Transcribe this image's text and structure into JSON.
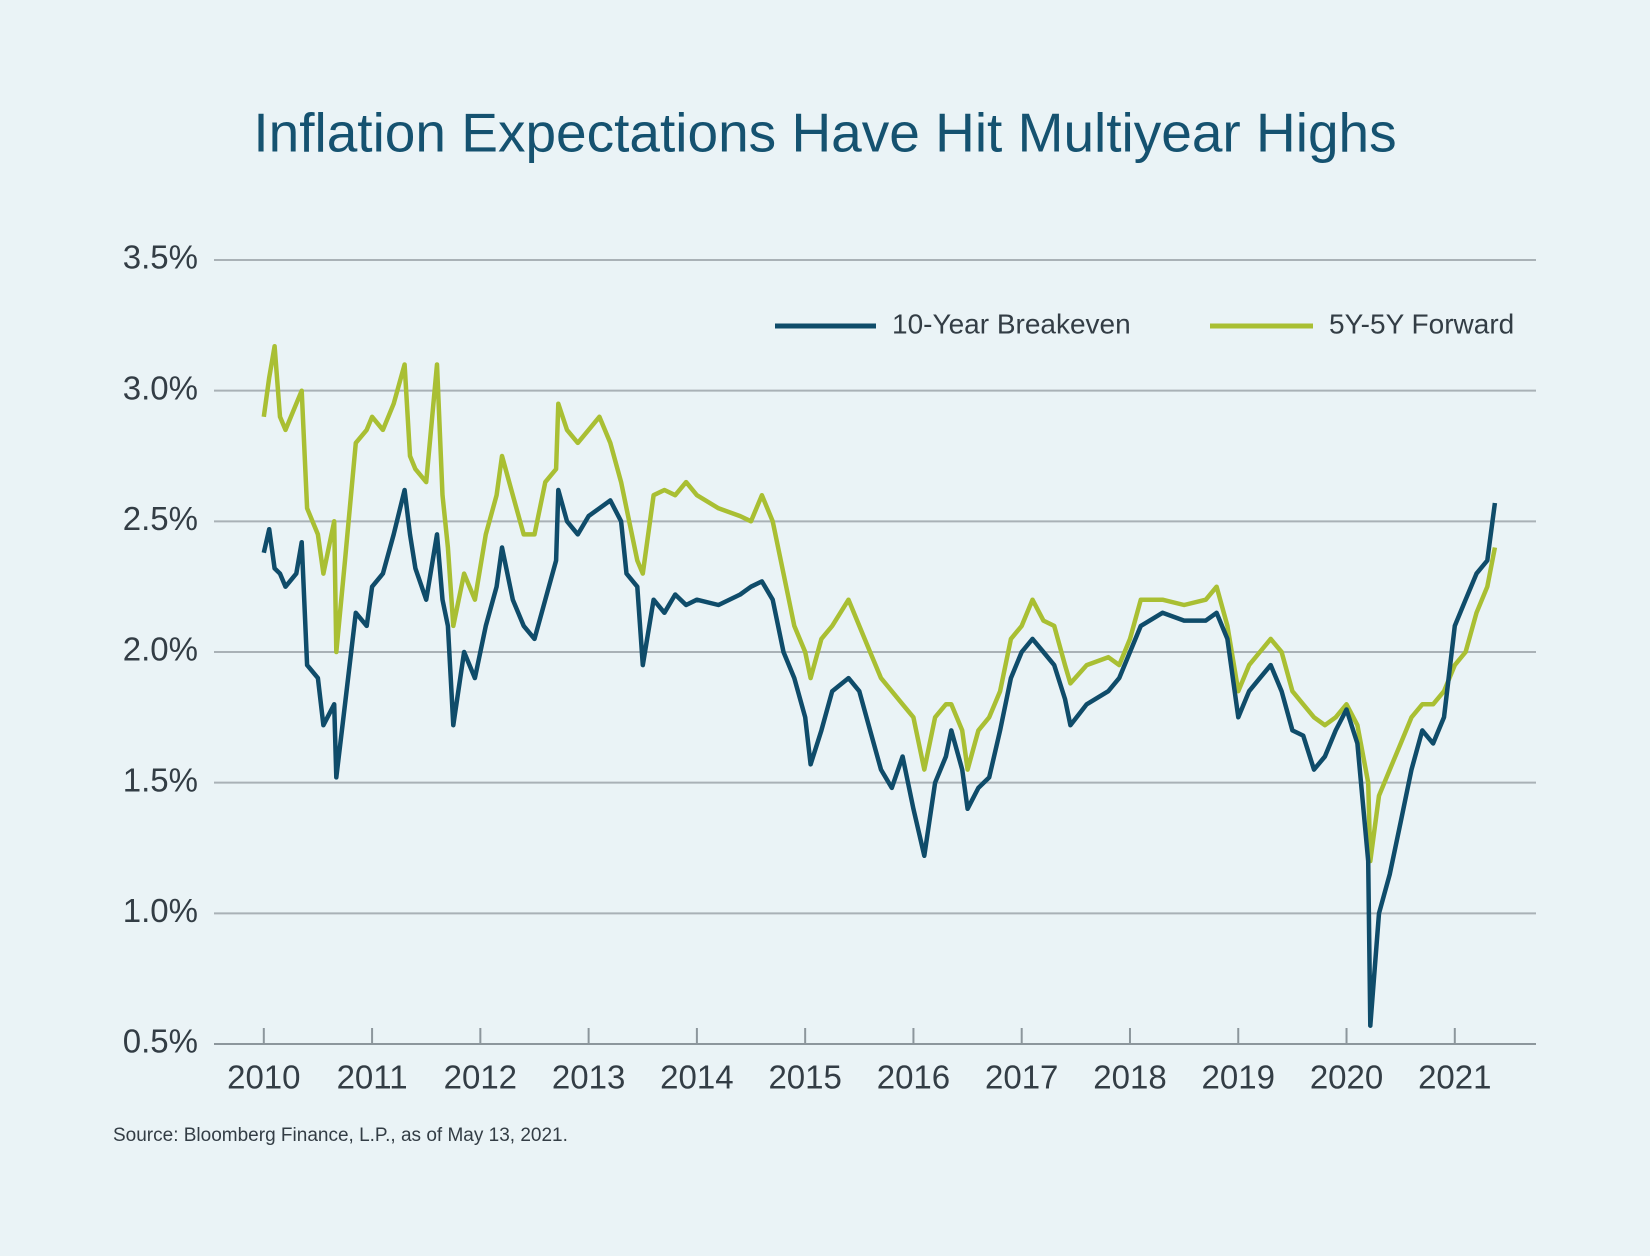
{
  "chart_data": {
    "type": "line",
    "title": "Inflation Expectations Have Hit Multiyear Highs",
    "source": "Source: Bloomberg Finance, L.P., as of May 13, 2021.",
    "x": [
      2010.0,
      2010.05,
      2010.1,
      2010.15,
      2010.2,
      2010.3,
      2010.35,
      2010.4,
      2010.5,
      2010.55,
      2010.65,
      2010.67,
      2010.75,
      2010.85,
      2010.95,
      2011.0,
      2011.1,
      2011.2,
      2011.3,
      2011.35,
      2011.4,
      2011.5,
      2011.6,
      2011.65,
      2011.7,
      2011.75,
      2011.85,
      2011.95,
      2012.05,
      2012.15,
      2012.2,
      2012.3,
      2012.4,
      2012.5,
      2012.6,
      2012.7,
      2012.72,
      2012.8,
      2012.9,
      2013.0,
      2013.1,
      2013.2,
      2013.3,
      2013.35,
      2013.45,
      2013.5,
      2013.6,
      2013.7,
      2013.8,
      2013.9,
      2014.0,
      2014.2,
      2014.4,
      2014.5,
      2014.6,
      2014.7,
      2014.8,
      2014.9,
      2015.0,
      2015.05,
      2015.15,
      2015.25,
      2015.4,
      2015.5,
      2015.6,
      2015.7,
      2015.8,
      2015.9,
      2016.0,
      2016.1,
      2016.2,
      2016.3,
      2016.35,
      2016.45,
      2016.5,
      2016.6,
      2016.7,
      2016.8,
      2016.9,
      2017.0,
      2017.1,
      2017.2,
      2017.3,
      2017.4,
      2017.45,
      2017.6,
      2017.8,
      2017.9,
      2018.0,
      2018.1,
      2018.3,
      2018.5,
      2018.7,
      2018.8,
      2018.9,
      2019.0,
      2019.1,
      2019.2,
      2019.3,
      2019.4,
      2019.5,
      2019.6,
      2019.7,
      2019.8,
      2019.9,
      2020.0,
      2020.1,
      2020.2,
      2020.22,
      2020.3,
      2020.4,
      2020.5,
      2020.6,
      2020.7,
      2020.8,
      2020.9,
      2021.0,
      2021.1,
      2021.2,
      2021.3,
      2021.37
    ],
    "series": [
      {
        "name": "10-Year Breakeven",
        "color": "#0f4c6a",
        "values": [
          2.38,
          2.47,
          2.32,
          2.3,
          2.25,
          2.3,
          2.42,
          1.95,
          1.9,
          1.72,
          1.8,
          1.52,
          1.8,
          2.15,
          2.1,
          2.25,
          2.3,
          2.45,
          2.62,
          2.45,
          2.32,
          2.2,
          2.45,
          2.2,
          2.1,
          1.72,
          2.0,
          1.9,
          2.1,
          2.25,
          2.4,
          2.2,
          2.1,
          2.05,
          2.2,
          2.35,
          2.62,
          2.5,
          2.45,
          2.52,
          2.55,
          2.58,
          2.5,
          2.3,
          2.25,
          1.95,
          2.2,
          2.15,
          2.22,
          2.18,
          2.2,
          2.18,
          2.22,
          2.25,
          2.27,
          2.2,
          2.0,
          1.9,
          1.75,
          1.57,
          1.7,
          1.85,
          1.9,
          1.85,
          1.7,
          1.55,
          1.48,
          1.6,
          1.4,
          1.22,
          1.5,
          1.6,
          1.7,
          1.55,
          1.4,
          1.48,
          1.52,
          1.7,
          1.9,
          2.0,
          2.05,
          2.0,
          1.95,
          1.82,
          1.72,
          1.8,
          1.85,
          1.9,
          2.0,
          2.1,
          2.15,
          2.12,
          2.12,
          2.15,
          2.05,
          1.75,
          1.85,
          1.9,
          1.95,
          1.85,
          1.7,
          1.68,
          1.55,
          1.6,
          1.7,
          1.78,
          1.65,
          1.2,
          0.57,
          1.0,
          1.15,
          1.35,
          1.55,
          1.7,
          1.65,
          1.75,
          2.1,
          2.2,
          2.3,
          2.35,
          2.57
        ]
      },
      {
        "name": "5Y-5Y Forward",
        "color": "#a9bf33",
        "values": [
          2.9,
          3.05,
          3.17,
          2.9,
          2.85,
          2.95,
          3.0,
          2.55,
          2.45,
          2.3,
          2.5,
          2.0,
          2.35,
          2.8,
          2.85,
          2.9,
          2.85,
          2.95,
          3.1,
          2.75,
          2.7,
          2.65,
          3.1,
          2.6,
          2.4,
          2.1,
          2.3,
          2.2,
          2.45,
          2.6,
          2.75,
          2.6,
          2.45,
          2.45,
          2.65,
          2.7,
          2.95,
          2.85,
          2.8,
          2.85,
          2.9,
          2.8,
          2.65,
          2.55,
          2.35,
          2.3,
          2.6,
          2.62,
          2.6,
          2.65,
          2.6,
          2.55,
          2.52,
          2.5,
          2.6,
          2.5,
          2.3,
          2.1,
          2.0,
          1.9,
          2.05,
          2.1,
          2.2,
          2.1,
          2.0,
          1.9,
          1.85,
          1.8,
          1.75,
          1.55,
          1.75,
          1.8,
          1.8,
          1.7,
          1.55,
          1.7,
          1.75,
          1.85,
          2.05,
          2.1,
          2.2,
          2.12,
          2.1,
          1.95,
          1.88,
          1.95,
          1.98,
          1.95,
          2.05,
          2.2,
          2.2,
          2.18,
          2.2,
          2.25,
          2.1,
          1.85,
          1.95,
          2.0,
          2.05,
          2.0,
          1.85,
          1.8,
          1.75,
          1.72,
          1.75,
          1.8,
          1.72,
          1.5,
          1.2,
          1.45,
          1.55,
          1.65,
          1.75,
          1.8,
          1.8,
          1.85,
          1.95,
          2.0,
          2.15,
          2.25,
          2.4
        ]
      }
    ],
    "xlim": [
      2009.54,
      2021.75
    ],
    "xticks": [
      2010,
      2011,
      2012,
      2013,
      2014,
      2015,
      2016,
      2017,
      2018,
      2019,
      2020,
      2021
    ],
    "ylim": [
      0.5,
      3.5
    ],
    "yticks": [
      {
        "value": 0.5,
        "label": "0.5%"
      },
      {
        "value": 1.0,
        "label": "1.0%"
      },
      {
        "value": 1.5,
        "label": "1.5%"
      },
      {
        "value": 2.0,
        "label": "2.0%"
      },
      {
        "value": 2.5,
        "label": "2.5%"
      },
      {
        "value": 3.0,
        "label": "3.0%"
      },
      {
        "value": 3.5,
        "label": "3.5%"
      }
    ],
    "grid": true,
    "legend": "upper right"
  }
}
